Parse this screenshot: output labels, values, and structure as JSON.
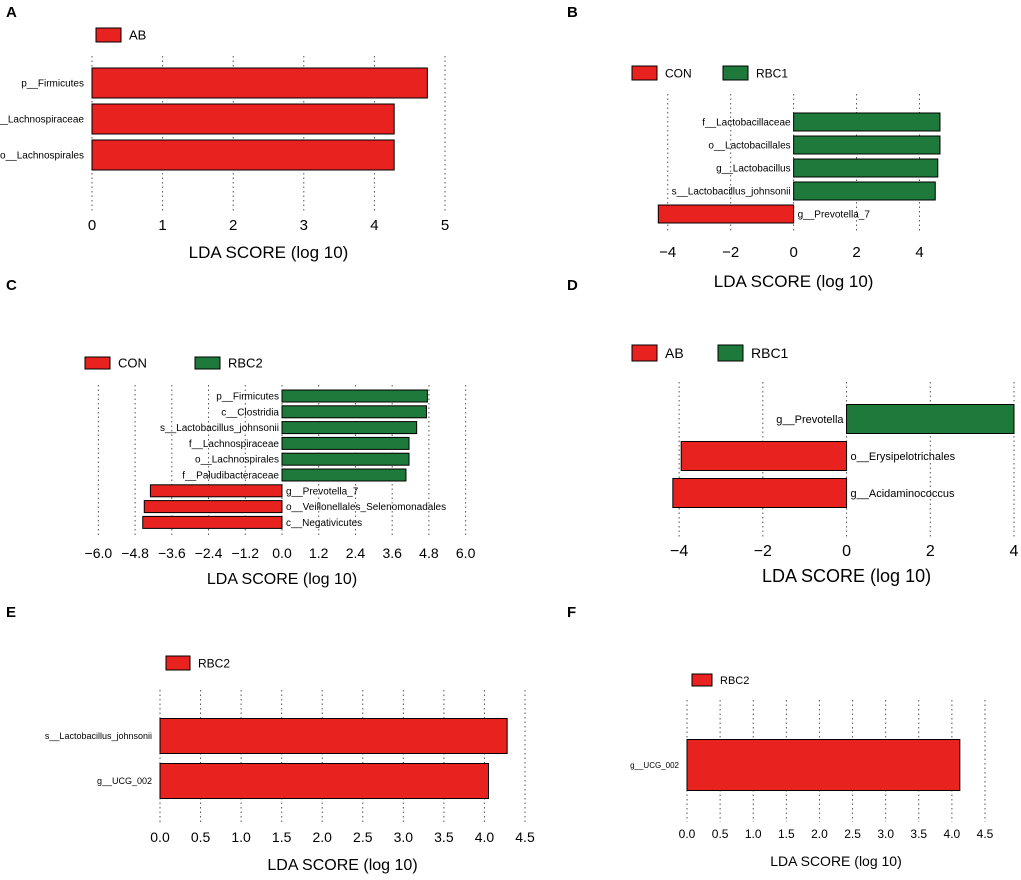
{
  "colors": {
    "red": "#e8221f",
    "green": "#1d7a3a"
  },
  "chart_data": [
    {
      "panel": "A",
      "type": "bar",
      "orientation": "horizontal",
      "xlabel": "LDA SCORE (log 10)",
      "xlim": [
        0,
        5
      ],
      "ticks": [
        "0",
        "1",
        "2",
        "3",
        "4",
        "5"
      ],
      "tick_values": [
        0,
        1,
        2,
        3,
        4,
        5
      ],
      "legend": [
        {
          "name": "AB",
          "color": "#e8221f"
        }
      ],
      "bars": [
        {
          "label": "p__Firmicutes",
          "value": 4.75,
          "group": "AB"
        },
        {
          "label": "f__Lachnospiraceae",
          "value": 4.28,
          "group": "AB"
        },
        {
          "label": "o__Lachnospirales",
          "value": 4.28,
          "group": "AB"
        }
      ]
    },
    {
      "panel": "B",
      "type": "bar",
      "orientation": "horizontal",
      "xlabel": "LDA SCORE (log 10)",
      "xlim": [
        -4.5,
        5
      ],
      "ticks": [
        "−4",
        "−2",
        "0",
        "2",
        "4"
      ],
      "tick_values": [
        -4,
        -2,
        0,
        2,
        4
      ],
      "legend": [
        {
          "name": "CON",
          "color": "#e8221f"
        },
        {
          "name": "RBC1",
          "color": "#1d7a3a"
        }
      ],
      "bars": [
        {
          "label": "f__Lactobacillaceae",
          "value": 4.65,
          "group": "RBC1"
        },
        {
          "label": "o__Lactobacillales",
          "value": 4.65,
          "group": "RBC1"
        },
        {
          "label": "g__Lactobacillus",
          "value": 4.58,
          "group": "RBC1"
        },
        {
          "label": "s__Lactobacillus_johnsonii",
          "value": 4.5,
          "group": "RBC1"
        },
        {
          "label": "g__Prevotella_7",
          "value": -4.3,
          "group": "CON"
        }
      ]
    },
    {
      "panel": "C",
      "type": "bar",
      "orientation": "horizontal",
      "xlabel": "LDA SCORE (log 10)",
      "xlim": [
        -6.6,
        6.6
      ],
      "ticks": [
        "−6.0",
        "−4.8",
        "−3.6",
        "−2.4",
        "−1.2",
        "0.0",
        "1.2",
        "2.4",
        "3.6",
        "4.8",
        "6.0"
      ],
      "tick_values": [
        -6.0,
        -4.8,
        -3.6,
        -2.4,
        -1.2,
        0.0,
        1.2,
        2.4,
        3.6,
        4.8,
        6.0
      ],
      "legend": [
        {
          "name": "CON",
          "color": "#e8221f"
        },
        {
          "name": "RBC2",
          "color": "#1d7a3a"
        }
      ],
      "bars": [
        {
          "label": "p__Firmicutes",
          "value": 4.75,
          "group": "RBC2"
        },
        {
          "label": "c__Clostridia",
          "value": 4.72,
          "group": "RBC2"
        },
        {
          "label": "s__Lactobacillus_johnsonii",
          "value": 4.4,
          "group": "RBC2"
        },
        {
          "label": "f__Lachnospiraceae",
          "value": 4.15,
          "group": "RBC2"
        },
        {
          "label": "o__Lachnospirales",
          "value": 4.15,
          "group": "RBC2"
        },
        {
          "label": "f__Paludibacteraceae",
          "value": 4.05,
          "group": "RBC2"
        },
        {
          "label": "g__Prevotella_7",
          "value": -4.3,
          "group": "CON"
        },
        {
          "label": "o__Veillonellales_Selenomonadales",
          "value": -4.5,
          "group": "CON"
        },
        {
          "label": "c__Negativicutes",
          "value": -4.55,
          "group": "CON"
        }
      ]
    },
    {
      "panel": "D",
      "type": "bar",
      "orientation": "horizontal",
      "xlabel": "LDA SCORE (log 10)",
      "xlim": [
        -4.6,
        4
      ],
      "ticks": [
        "−4",
        "−2",
        "0",
        "2",
        "4"
      ],
      "tick_values": [
        -4,
        -2,
        0,
        2,
        4
      ],
      "legend": [
        {
          "name": "AB",
          "color": "#e8221f"
        },
        {
          "name": "RBC1",
          "color": "#1d7a3a"
        }
      ],
      "bars": [
        {
          "label": "g__Prevotella",
          "value": 4.0,
          "group": "RBC1"
        },
        {
          "label": "o__Erysipelotrichales",
          "value": -3.95,
          "group": "AB"
        },
        {
          "label": "g__Acidaminococcus",
          "value": -4.15,
          "group": "AB"
        }
      ]
    },
    {
      "panel": "E",
      "type": "bar",
      "orientation": "horizontal",
      "xlabel": "LDA SCORE (log 10)",
      "xlim": [
        0,
        4.5
      ],
      "ticks": [
        "0.0",
        "0.5",
        "1.0",
        "1.5",
        "2.0",
        "2.5",
        "3.0",
        "3.5",
        "4.0",
        "4.5"
      ],
      "tick_values": [
        0,
        0.5,
        1.0,
        1.5,
        2.0,
        2.5,
        3.0,
        3.5,
        4.0,
        4.5
      ],
      "legend": [
        {
          "name": "RBC2",
          "color": "#e8221f"
        }
      ],
      "bars": [
        {
          "label": "s__Lactobacillus_johnsonii",
          "value": 4.28,
          "group": "RBC2"
        },
        {
          "label": "g__UCG_002",
          "value": 4.05,
          "group": "RBC2"
        }
      ]
    },
    {
      "panel": "F",
      "type": "bar",
      "orientation": "horizontal",
      "xlabel": "LDA SCORE (log 10)",
      "xlim": [
        0,
        4.5
      ],
      "ticks": [
        "0.0",
        "0.5",
        "1.0",
        "1.5",
        "2.0",
        "2.5",
        "3.0",
        "3.5",
        "4.0",
        "4.5"
      ],
      "tick_values": [
        0,
        0.5,
        1.0,
        1.5,
        2.0,
        2.5,
        3.0,
        3.5,
        4.0,
        4.5
      ],
      "legend": [
        {
          "name": "RBC2",
          "color": "#e8221f"
        }
      ],
      "bars": [
        {
          "label": "g__UCG_002",
          "value": 4.12,
          "group": "RBC2"
        }
      ]
    }
  ]
}
